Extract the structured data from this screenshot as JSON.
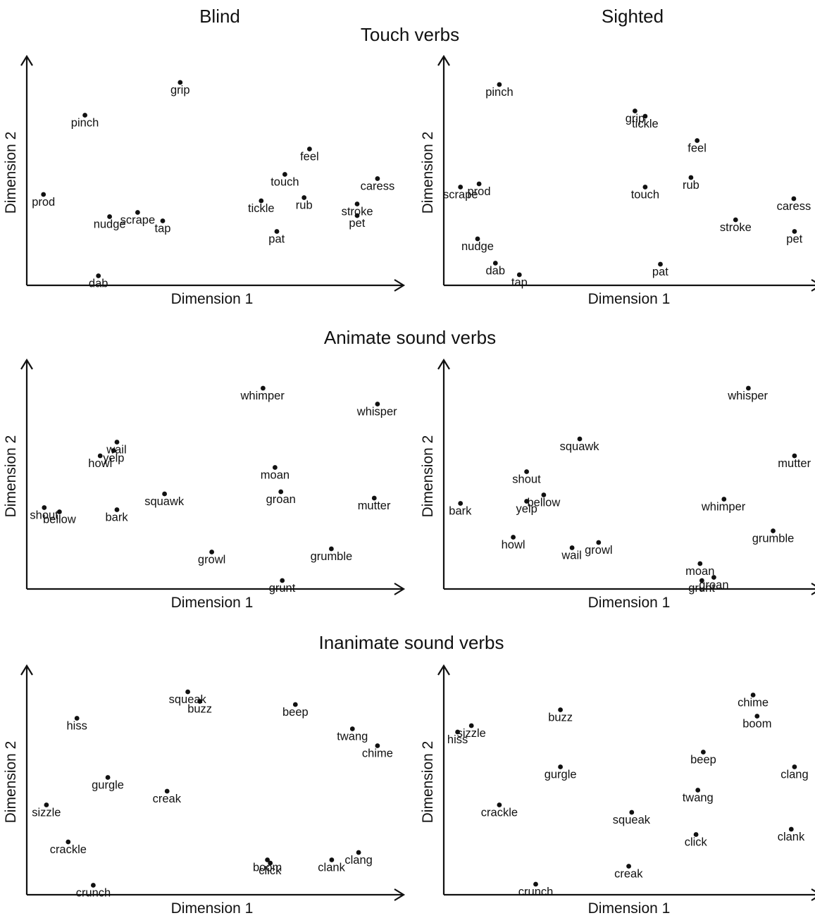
{
  "column_titles": [
    "Blind",
    "Sighted"
  ],
  "row_titles": [
    "Touch verbs",
    "Animate sound verbs",
    "Inanimate sound verbs"
  ],
  "chart_data": [
    {
      "type": "scatter",
      "group": "Blind",
      "panel": "Touch verbs",
      "xlabel": "Dimension 1",
      "ylabel": "Dimension 2",
      "xlim": [
        0,
        100
      ],
      "ylim": [
        0,
        100
      ],
      "grid": false,
      "points": [
        {
          "label": "grip",
          "x": 42.2,
          "y": 96.0
        },
        {
          "label": "pinch",
          "x": 16.0,
          "y": 80.5
        },
        {
          "label": "feel",
          "x": 77.8,
          "y": 64.5
        },
        {
          "label": "touch",
          "x": 71.0,
          "y": 52.5
        },
        {
          "label": "caress",
          "x": 96.5,
          "y": 50.5
        },
        {
          "label": "prod",
          "x": 4.6,
          "y": 43.0
        },
        {
          "label": "rub",
          "x": 76.3,
          "y": 41.5
        },
        {
          "label": "tickle",
          "x": 64.5,
          "y": 40.0
        },
        {
          "label": "stroke",
          "x": 90.9,
          "y": 38.5
        },
        {
          "label": "scrape",
          "x": 30.5,
          "y": 34.5
        },
        {
          "label": "nudge",
          "x": 22.8,
          "y": 32.5
        },
        {
          "label": "pet",
          "x": 90.9,
          "y": 33.0
        },
        {
          "label": "tap",
          "x": 37.4,
          "y": 30.5
        },
        {
          "label": "pat",
          "x": 68.8,
          "y": 25.5
        },
        {
          "label": "dab",
          "x": 19.7,
          "y": 4.5
        }
      ]
    },
    {
      "type": "scatter",
      "group": "Sighted",
      "panel": "Touch verbs",
      "xlabel": "Dimension 1",
      "ylabel": "Dimension 2",
      "xlim": [
        0,
        100
      ],
      "ylim": [
        0,
        100
      ],
      "grid": false,
      "points": [
        {
          "label": "pinch",
          "x": 15.3,
          "y": 95.0
        },
        {
          "label": "grip",
          "x": 52.6,
          "y": 82.5
        },
        {
          "label": "tickle",
          "x": 55.4,
          "y": 80.0
        },
        {
          "label": "feel",
          "x": 69.7,
          "y": 68.5
        },
        {
          "label": "rub",
          "x": 68.0,
          "y": 51.0
        },
        {
          "label": "prod",
          "x": 9.7,
          "y": 48.0
        },
        {
          "label": "scrape",
          "x": 4.6,
          "y": 46.5
        },
        {
          "label": "touch",
          "x": 55.4,
          "y": 46.5
        },
        {
          "label": "caress",
          "x": 96.3,
          "y": 41.0
        },
        {
          "label": "stroke",
          "x": 80.3,
          "y": 31.0
        },
        {
          "label": "pet",
          "x": 96.5,
          "y": 25.5
        },
        {
          "label": "nudge",
          "x": 9.3,
          "y": 22.0
        },
        {
          "label": "dab",
          "x": 14.2,
          "y": 10.5
        },
        {
          "label": "pat",
          "x": 59.6,
          "y": 10.0
        },
        {
          "label": "tap",
          "x": 20.8,
          "y": 5.0
        }
      ]
    },
    {
      "type": "scatter",
      "group": "Blind",
      "panel": "Animate sound verbs",
      "xlabel": "Dimension 1",
      "ylabel": "Dimension 2",
      "xlim": [
        0,
        100
      ],
      "ylim": [
        0,
        100
      ],
      "grid": false,
      "points": [
        {
          "label": "whimper",
          "x": 65.0,
          "y": 95.0
        },
        {
          "label": "whisper",
          "x": 96.5,
          "y": 87.5
        },
        {
          "label": "wail",
          "x": 24.8,
          "y": 69.5
        },
        {
          "label": "yelp",
          "x": 23.9,
          "y": 65.5
        },
        {
          "label": "howl",
          "x": 20.2,
          "y": 63.0
        },
        {
          "label": "moan",
          "x": 68.3,
          "y": 57.5
        },
        {
          "label": "groan",
          "x": 69.9,
          "y": 46.0
        },
        {
          "label": "squawk",
          "x": 37.9,
          "y": 45.0
        },
        {
          "label": "mutter",
          "x": 95.6,
          "y": 43.0
        },
        {
          "label": "shout",
          "x": 4.8,
          "y": 38.5
        },
        {
          "label": "bellow",
          "x": 9.0,
          "y": 36.5
        },
        {
          "label": "bark",
          "x": 24.8,
          "y": 37.5
        },
        {
          "label": "growl",
          "x": 50.9,
          "y": 17.5
        },
        {
          "label": "grumble",
          "x": 83.8,
          "y": 19.0
        },
        {
          "label": "grunt",
          "x": 70.3,
          "y": 4.0
        }
      ]
    },
    {
      "type": "scatter",
      "group": "Sighted",
      "panel": "Animate sound verbs",
      "xlabel": "Dimension 1",
      "ylabel": "Dimension 2",
      "xlim": [
        0,
        100
      ],
      "ylim": [
        0,
        100
      ],
      "grid": false,
      "points": [
        {
          "label": "whisper",
          "x": 83.8,
          "y": 95.0
        },
        {
          "label": "squawk",
          "x": 37.4,
          "y": 71.0
        },
        {
          "label": "mutter",
          "x": 96.5,
          "y": 63.0
        },
        {
          "label": "shout",
          "x": 22.8,
          "y": 55.5
        },
        {
          "label": "bellow",
          "x": 27.5,
          "y": 44.5
        },
        {
          "label": "whimper",
          "x": 77.1,
          "y": 42.5
        },
        {
          "label": "yelp",
          "x": 22.8,
          "y": 41.5
        },
        {
          "label": "bark",
          "x": 4.6,
          "y": 40.5
        },
        {
          "label": "grumble",
          "x": 90.6,
          "y": 27.5
        },
        {
          "label": "howl",
          "x": 19.1,
          "y": 24.5
        },
        {
          "label": "growl",
          "x": 42.6,
          "y": 22.0
        },
        {
          "label": "wail",
          "x": 35.3,
          "y": 19.5
        },
        {
          "label": "moan",
          "x": 70.5,
          "y": 12.0
        },
        {
          "label": "groan",
          "x": 74.3,
          "y": 5.5
        },
        {
          "label": "grunt",
          "x": 71.0,
          "y": 4.0
        }
      ]
    },
    {
      "type": "scatter",
      "group": "Blind",
      "panel": "Inanimate sound verbs",
      "xlabel": "Dimension 1",
      "ylabel": "Dimension 2",
      "xlim": [
        0,
        100
      ],
      "ylim": [
        0,
        100
      ],
      "grid": false,
      "points": [
        {
          "label": "squeak",
          "x": 44.3,
          "y": 96.0
        },
        {
          "label": "buzz",
          "x": 47.6,
          "y": 91.5
        },
        {
          "label": "beep",
          "x": 73.9,
          "y": 90.0
        },
        {
          "label": "hiss",
          "x": 13.8,
          "y": 83.5
        },
        {
          "label": "twang",
          "x": 89.6,
          "y": 78.5
        },
        {
          "label": "chime",
          "x": 96.5,
          "y": 70.5
        },
        {
          "label": "gurgle",
          "x": 22.3,
          "y": 55.5
        },
        {
          "label": "creak",
          "x": 38.6,
          "y": 49.0
        },
        {
          "label": "sizzle",
          "x": 5.4,
          "y": 42.5
        },
        {
          "label": "crackle",
          "x": 11.4,
          "y": 25.0
        },
        {
          "label": "clang",
          "x": 91.3,
          "y": 20.0
        },
        {
          "label": "boom",
          "x": 66.2,
          "y": 16.5
        },
        {
          "label": "click",
          "x": 67.0,
          "y": 15.0
        },
        {
          "label": "clank",
          "x": 83.9,
          "y": 16.5
        },
        {
          "label": "crunch",
          "x": 18.3,
          "y": 4.5
        }
      ]
    },
    {
      "type": "scatter",
      "group": "Sighted",
      "panel": "Inanimate sound verbs",
      "xlabel": "Dimension 1",
      "ylabel": "Dimension 2",
      "xlim": [
        0,
        100
      ],
      "ylim": [
        0,
        100
      ],
      "grid": false,
      "points": [
        {
          "label": "chime",
          "x": 85.1,
          "y": 94.5
        },
        {
          "label": "buzz",
          "x": 32.1,
          "y": 87.5
        },
        {
          "label": "boom",
          "x": 86.2,
          "y": 84.5
        },
        {
          "label": "sizzle",
          "x": 7.6,
          "y": 80.0
        },
        {
          "label": "hiss",
          "x": 3.8,
          "y": 77.0
        },
        {
          "label": "beep",
          "x": 71.4,
          "y": 67.5
        },
        {
          "label": "gurgle",
          "x": 32.1,
          "y": 60.5
        },
        {
          "label": "clang",
          "x": 96.5,
          "y": 60.5
        },
        {
          "label": "twang",
          "x": 69.9,
          "y": 49.5
        },
        {
          "label": "crackle",
          "x": 15.3,
          "y": 42.5
        },
        {
          "label": "squeak",
          "x": 51.7,
          "y": 39.0
        },
        {
          "label": "click",
          "x": 69.4,
          "y": 28.5
        },
        {
          "label": "clank",
          "x": 95.6,
          "y": 31.0
        },
        {
          "label": "creak",
          "x": 50.9,
          "y": 13.5
        },
        {
          "label": "crunch",
          "x": 25.3,
          "y": 5.0
        }
      ]
    }
  ]
}
